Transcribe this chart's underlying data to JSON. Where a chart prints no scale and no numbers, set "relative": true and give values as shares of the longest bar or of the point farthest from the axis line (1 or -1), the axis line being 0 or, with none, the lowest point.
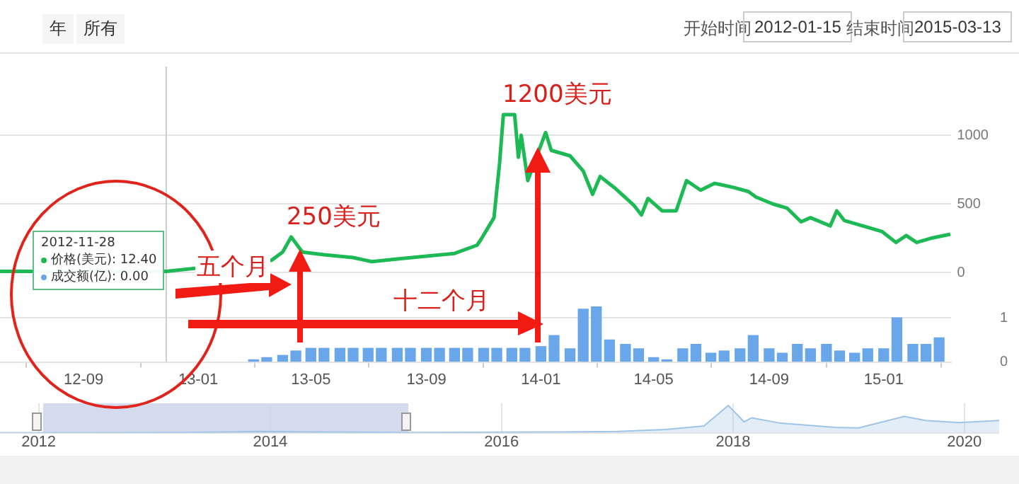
{
  "chart_data": [
    {
      "type": "line",
      "x": [
        "2012-06-04",
        "2012-09-01",
        "2012-11-28",
        "2013-01-01",
        "2013-02-01",
        "2013-03-01",
        "2013-03-20",
        "2013-04-01",
        "2013-04-10",
        "2013-04-16",
        "2013-04-22",
        "2013-05-15",
        "2013-06-15",
        "2013-07-05",
        "2013-08-01",
        "2013-09-01",
        "2013-10-01",
        "2013-10-25",
        "2013-10-29",
        "2013-11-12",
        "2013-11-18",
        "2013-11-22",
        "2013-12-04",
        "2013-12-08",
        "2013-12-11",
        "2013-12-18",
        "2013-12-27",
        "2014-01-06",
        "2014-01-12",
        "2014-02-01",
        "2014-02-15",
        "2014-02-25",
        "2014-03-05",
        "2014-03-20",
        "2014-04-10",
        "2014-04-18",
        "2014-04-25",
        "2014-05-10",
        "2014-05-25",
        "2014-06-05",
        "2014-06-20",
        "2014-07-05",
        "2014-07-25",
        "2014-08-10",
        "2014-08-18",
        "2014-09-05",
        "2014-09-20",
        "2014-10-05",
        "2014-10-15",
        "2014-11-05",
        "2014-11-12",
        "2014-11-20",
        "2014-12-10",
        "2014-12-30",
        "2015-01-14",
        "2015-01-25",
        "2015-02-05",
        "2015-02-20",
        "2015-03-13"
      ],
      "series": [
        {
          "type": "line",
          "color": "#1db954",
          "values": [
            10,
            null,
            10,
            null,
            null,
            null,
            90,
            150,
            260,
            null,
            150,
            130,
            110,
            80,
            100,
            120,
            140,
            200,
            240,
            400,
            800,
            1150,
            1150,
            840,
            1000,
            670,
            null,
            1020,
            890,
            850,
            740,
            570,
            700,
            620,
            490,
            420,
            540,
            450,
            450,
            670,
            600,
            650,
            620,
            590,
            550,
            500,
            470,
            370,
            400,
            340,
            450,
            380,
            340,
            300,
            220,
            270,
            220,
            250,
            280
          ]
        },
        {
          "type": "bar",
          "axis": "y2",
          "color": "#6aa7ea",
          "x": [
            "2013-03-01",
            "2013-03-15",
            "2013-04-01",
            "2013-04-15",
            "2013-05-01",
            "2013-05-15",
            "2013-06-01",
            "2013-06-15",
            "2013-07-01",
            "2013-07-15",
            "2013-08-01",
            "2013-08-15",
            "2013-09-01",
            "2013-09-15",
            "2013-10-01",
            "2013-10-15",
            "2013-11-01",
            "2013-11-15",
            "2013-12-01",
            "2013-12-15",
            "2014-01-01",
            "2014-01-15",
            "2014-02-01",
            "2014-02-15",
            "2014-03-01",
            "2014-03-15",
            "2014-04-01",
            "2014-04-15",
            "2014-05-01",
            "2014-05-15",
            "2014-06-01",
            "2014-06-15",
            "2014-07-01",
            "2014-07-15",
            "2014-08-01",
            "2014-08-15",
            "2014-09-01",
            "2014-09-15",
            "2014-10-01",
            "2014-10-15",
            "2014-11-01",
            "2014-11-15",
            "2014-12-01",
            "2014-12-15",
            "2015-01-01",
            "2015-01-15",
            "2015-02-01",
            "2015-02-15",
            "2015-03-01"
          ],
          "values": [
            0.05,
            0.1,
            0.15,
            0.25,
            0.31,
            0.31,
            0.31,
            0.31,
            0.31,
            0.31,
            0.31,
            0.31,
            0.31,
            0.31,
            0.31,
            0.31,
            0.31,
            0.31,
            0.31,
            0.31,
            0.35,
            0.6,
            0.3,
            1.2,
            1.25,
            0.5,
            0.4,
            0.3,
            0.1,
            0.05,
            0.3,
            0.4,
            0.2,
            0.25,
            0.3,
            0.6,
            0.3,
            0.2,
            0.4,
            0.3,
            0.4,
            0.25,
            0.2,
            0.3,
            0.3,
            1.0,
            0.4,
            0.4,
            0.55
          ]
        }
      ],
      "xlim": [
        "2012-06-04",
        "2015-03-14"
      ],
      "xticks": [
        {
          "value": "2012-09-01",
          "label": "12-09"
        },
        {
          "value": "2013-01-01",
          "label": "13-01"
        },
        {
          "value": "2013-05-01",
          "label": "13-05"
        },
        {
          "value": "2013-09-01",
          "label": "13-09"
        },
        {
          "value": "2014-01-01",
          "label": "14-01"
        },
        {
          "value": "2014-05-01",
          "label": "14-05"
        },
        {
          "value": "2014-09-01",
          "label": "14-09"
        },
        {
          "value": "2015-01-01",
          "label": "15-01"
        }
      ],
      "ylim": [
        -650,
        1500
      ],
      "yticks": [
        0,
        500,
        1000
      ],
      "y2lim": [
        0,
        6.7
      ],
      "y2ticks": [
        0,
        1
      ],
      "grid": "y",
      "marker": "none",
      "ref_lines": [
        {
          "axis": "x",
          "value": "2012-11-28",
          "color": "#cccccc"
        }
      ],
      "annotations": [
        "年",
        "所有",
        "开始时间",
        "2012-01-15",
        "结束时间",
        "2015-03-13",
        "五个月",
        "十二个月",
        "2012-11-28",
        "价格(美元): 12.40",
        "成交额(亿): 0.00",
        {
          "text": "250美元",
          "x": "2013-04-10",
          "y": 260
        },
        {
          "text": "1200美元",
          "x": "2013-12-04",
          "y": 1150
        }
      ]
    },
    {
      "type": "line",
      "relative": true,
      "color": "#9ec5e8",
      "x": [
        "2011-09-01",
        "2012-06-01",
        "2013-04-01",
        "2013-12-01",
        "2014-06-01",
        "2015-03-01",
        "2016-01-01",
        "2016-07-01",
        "2017-01-01",
        "2017-06-01",
        "2017-10-01",
        "2017-12-17",
        "2018-02-05",
        "2018-03-01",
        "2018-06-01",
        "2018-11-20",
        "2019-02-01",
        "2019-06-25",
        "2019-09-01",
        "2019-12-15",
        "2020-04-20"
      ],
      "values": [
        0,
        0,
        0.01,
        0.05,
        0.03,
        0.01,
        0.02,
        0.03,
        0.05,
        0.12,
        0.25,
        1,
        0.4,
        0.55,
        0.35,
        0.2,
        0.18,
        0.6,
        0.45,
        0.37,
        0.45
      ],
      "xlim": [
        "2011-09-01",
        "2020-04-20"
      ],
      "xticks": [
        {
          "value": "2012-01-01",
          "label": "2012"
        },
        {
          "value": "2014-01-01",
          "label": "2014"
        },
        {
          "value": "2016-01-01",
          "label": "2016"
        },
        {
          "value": "2018-01-01",
          "label": "2018"
        },
        {
          "value": "2020-01-01",
          "label": "2020"
        }
      ],
      "grid": "x",
      "marker": "none",
      "bands": [
        {
          "axis": "x",
          "from": "2012-01-15",
          "to": "2015-03-13",
          "color": "#cdd5ec"
        }
      ]
    }
  ]
}
